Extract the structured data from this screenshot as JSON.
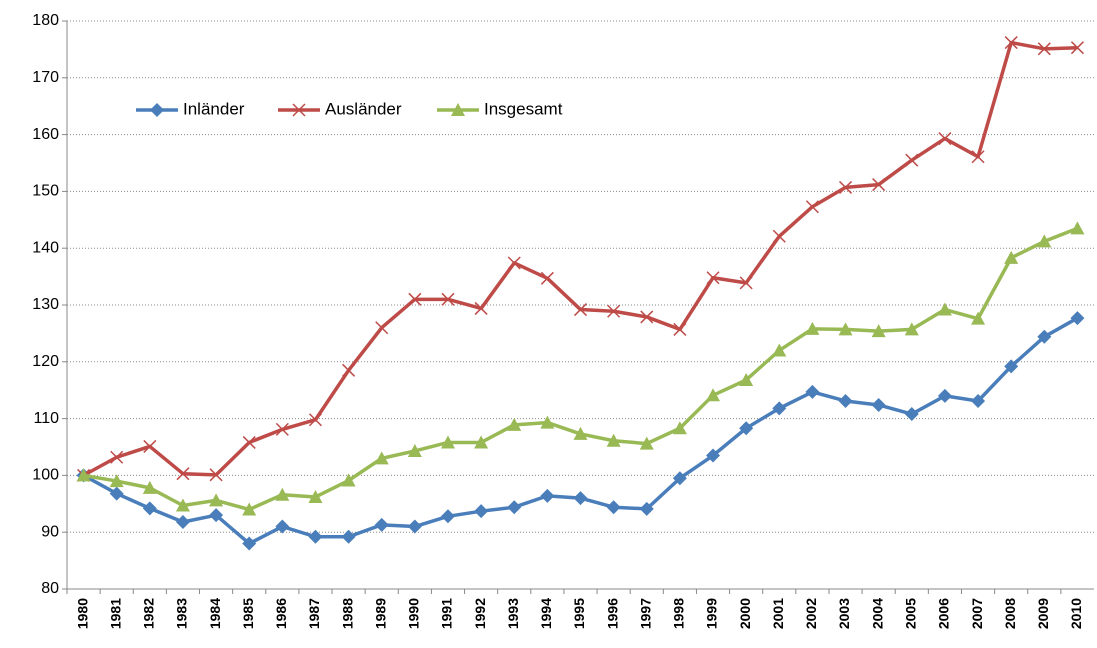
{
  "chart_data": {
    "type": "line",
    "categories": [
      "1980",
      "1981",
      "1982",
      "1983",
      "1984",
      "1985",
      "1986",
      "1987",
      "1988",
      "1989",
      "1990",
      "1991",
      "1992",
      "1993",
      "1994",
      "1995",
      "1996",
      "1997",
      "1998",
      "1999",
      "2000",
      "2001",
      "2002",
      "2003",
      "2004",
      "2005",
      "2006",
      "2007",
      "2008",
      "2009",
      "2010"
    ],
    "series": [
      {
        "name": "Inländer",
        "color": "#4a7ebb",
        "marker": "diamond",
        "values": [
          100,
          96.8,
          94.2,
          91.8,
          93,
          88,
          91,
          89.2,
          89.2,
          91.3,
          91,
          92.8,
          93.7,
          94.4,
          96.4,
          96,
          94.4,
          94.1,
          99.5,
          103.5,
          108.3,
          111.8,
          114.7,
          113.1,
          112.4,
          110.8,
          114,
          113.1,
          119.2,
          124.4,
          127.7
        ]
      },
      {
        "name": "Ausländer",
        "color": "#be4b48",
        "marker": "x",
        "values": [
          100,
          103.2,
          105.1,
          100.3,
          100.1,
          105.8,
          108.1,
          109.8,
          118.5,
          126,
          131,
          131,
          129.4,
          137.4,
          134.7,
          129.2,
          128.9,
          127.9,
          125.7,
          134.8,
          133.9,
          142.1,
          147.3,
          150.7,
          151.2,
          155.5,
          159.3,
          156.1,
          176.2,
          175.1,
          175.3
        ]
      },
      {
        "name": "Insgesamt",
        "color": "#98b954",
        "marker": "triangle",
        "values": [
          100,
          99,
          97.8,
          94.7,
          95.6,
          94,
          96.6,
          96.2,
          99.1,
          103,
          104.3,
          105.8,
          105.8,
          108.9,
          109.3,
          107.3,
          106.1,
          105.6,
          108.3,
          114.1,
          116.8,
          122,
          125.8,
          125.7,
          125.4,
          125.7,
          129.2,
          127.6,
          138.3,
          141.2,
          143.5
        ]
      }
    ],
    "ylim": [
      80,
      180
    ],
    "yticks": [
      80,
      90,
      100,
      110,
      120,
      130,
      140,
      150,
      160,
      170,
      180
    ],
    "grid": true,
    "legend": "upper left"
  }
}
